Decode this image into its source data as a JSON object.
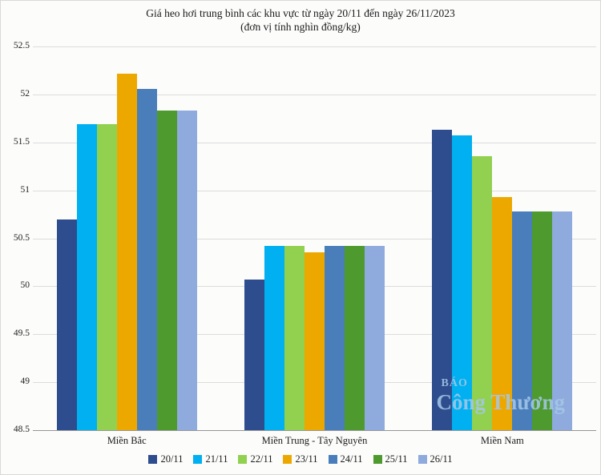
{
  "title_line1": "Giá heo hơi trung bình các khu vực từ ngày 20/11 đến ngày 26/11/2023",
  "title_line2": "(đơn vị tính nghìn đồng/kg)",
  "watermark": {
    "line1": "BÁO",
    "line2": "Công Thương"
  },
  "chart_data": {
    "type": "bar",
    "title": "Giá heo hơi trung bình các khu vực từ ngày 20/11 đến ngày 26/11/2023",
    "subtitle": "(đơn vị tính nghìn đồng/kg)",
    "categories": [
      "Miền Bắc",
      "Miền Trung - Tây Nguyên",
      "Miền Nam"
    ],
    "series": [
      {
        "name": "20/11",
        "color": "#2e4d8e",
        "values": [
          50.7,
          50.07,
          51.63
        ]
      },
      {
        "name": "21/11",
        "color": "#00b0f0",
        "values": [
          51.69,
          50.42,
          51.57
        ]
      },
      {
        "name": "22/11",
        "color": "#92d050",
        "values": [
          51.69,
          50.42,
          51.36
        ]
      },
      {
        "name": "23/11",
        "color": "#eda800",
        "values": [
          52.22,
          50.35,
          50.93
        ]
      },
      {
        "name": "24/11",
        "color": "#4a7ebb",
        "values": [
          52.06,
          50.42,
          50.78
        ]
      },
      {
        "name": "25/11",
        "color": "#4e9a2e",
        "values": [
          51.83,
          50.42,
          50.78
        ]
      },
      {
        "name": "26/11",
        "color": "#8faadc",
        "values": [
          51.83,
          50.42,
          50.78
        ]
      }
    ],
    "xlabel": "",
    "ylabel": "",
    "ylim": [
      48.5,
      52.5
    ],
    "ytick_step": 0.5,
    "grid": true,
    "legend_position": "bottom"
  }
}
